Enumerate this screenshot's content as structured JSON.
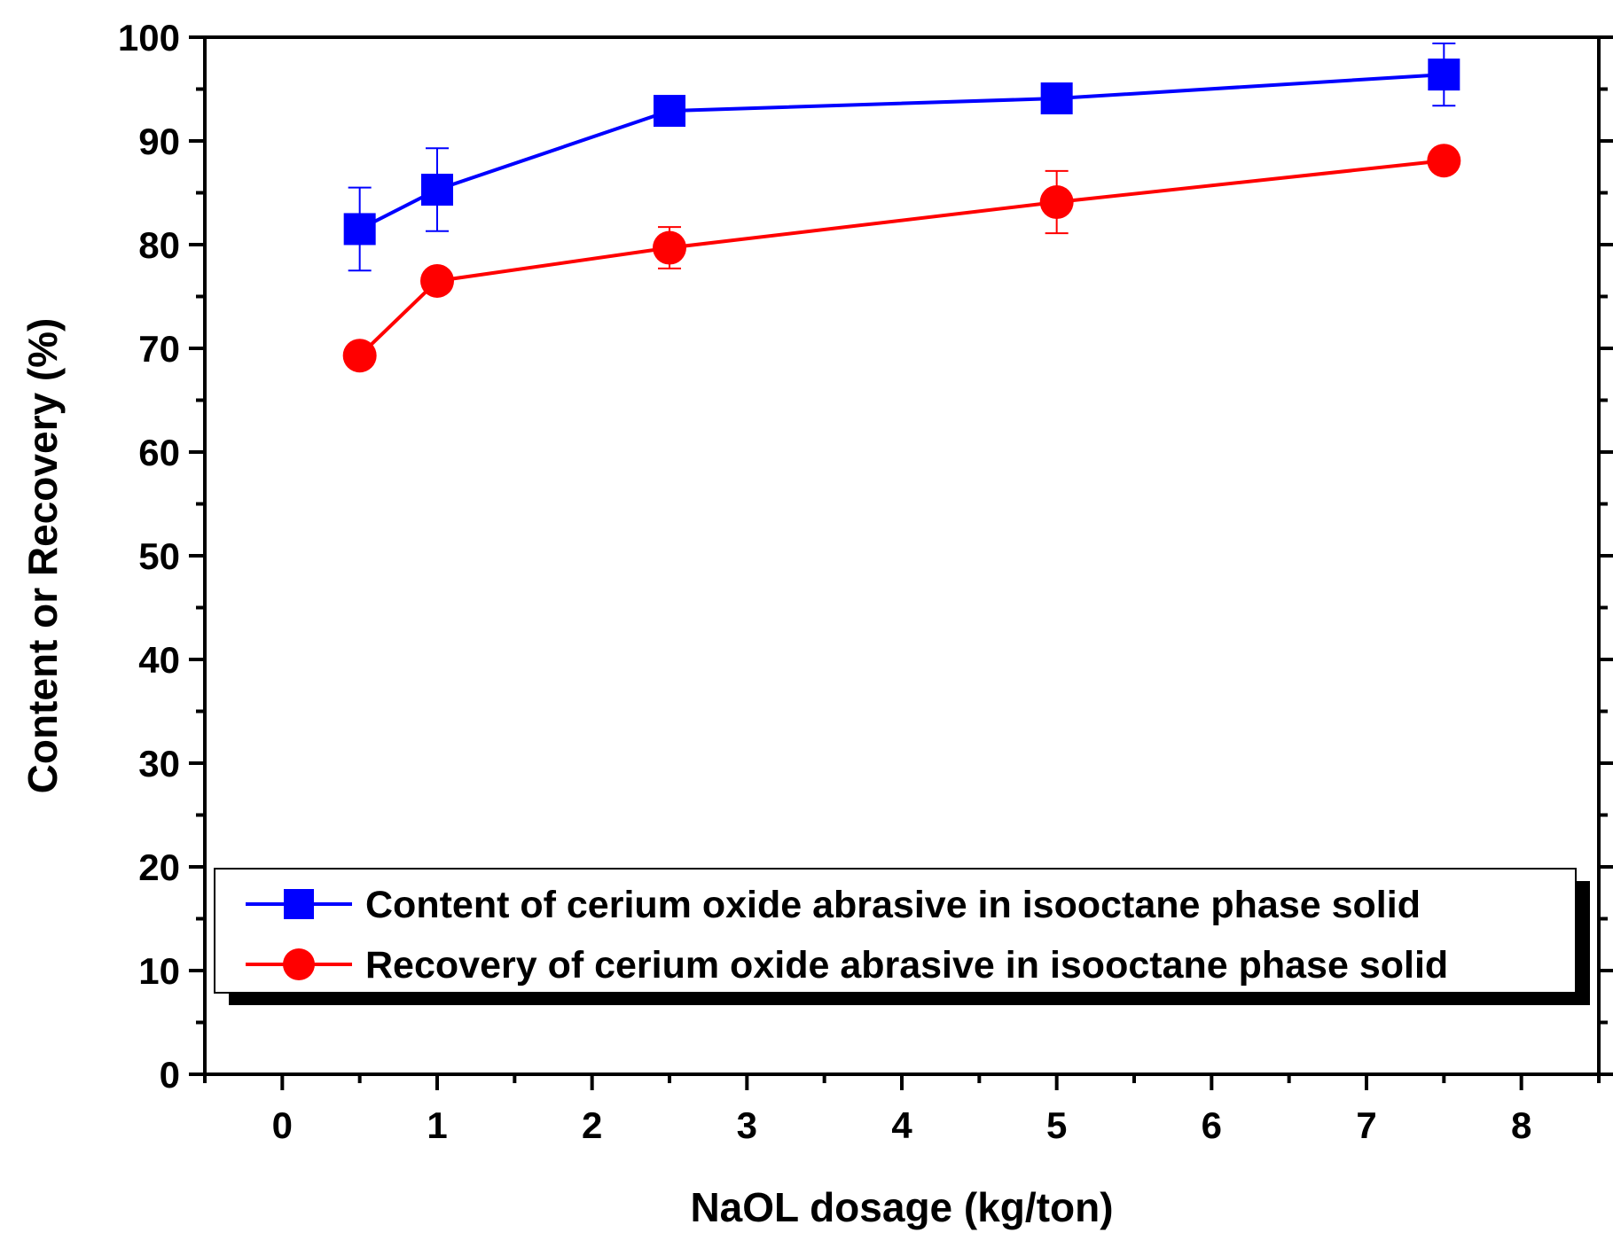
{
  "chart_data": {
    "type": "line",
    "title": "",
    "xlabel": "NaOL dosage (kg/ton)",
    "ylabel": "Content or Recovery (%)",
    "xlim": [
      -0.5,
      8.5
    ],
    "ylim": [
      0,
      100
    ],
    "xticks": [
      0,
      1,
      2,
      3,
      4,
      5,
      6,
      7,
      8
    ],
    "yticks": [
      0,
      10,
      20,
      30,
      40,
      50,
      60,
      70,
      80,
      90,
      100
    ],
    "grid": false,
    "legend_position": "bottom",
    "series": [
      {
        "name": "Content of cerium oxide abrasive in isooctane phase solid",
        "color": "#0000ff",
        "marker": "square",
        "x": [
          0.5,
          1,
          2.5,
          5,
          7.5
        ],
        "y": [
          81.5,
          85.3,
          92.9,
          94.1,
          96.4
        ],
        "err": [
          4.0,
          4.0,
          0,
          0,
          3.0
        ]
      },
      {
        "name": "Recovery of cerium oxide abrasive in isooctane phase solid",
        "color": "#ff0000",
        "marker": "circle",
        "x": [
          0.5,
          1,
          2.5,
          5,
          7.5
        ],
        "y": [
          69.3,
          76.5,
          79.7,
          84.1,
          88.1
        ],
        "err": [
          0,
          0,
          2.0,
          3.0,
          0
        ]
      }
    ]
  }
}
